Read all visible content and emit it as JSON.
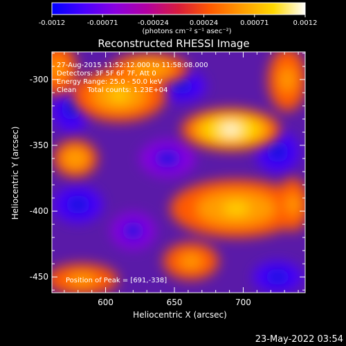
{
  "colorbar": {
    "ticks": [
      "-0.0012",
      "-0.00071",
      "-0.00024",
      "0.00024",
      "0.00071",
      "0.0012"
    ],
    "unit_label": "(photons cm⁻² s⁻¹ asec⁻²)",
    "colormap": [
      "#0000ff",
      "#4800ff",
      "#8a00e0",
      "#b300a0",
      "#d81c3c",
      "#ff5a00",
      "#ff9c00",
      "#ffd800",
      "#ffffff"
    ]
  },
  "chart_data": {
    "type": "heatmap",
    "title": "Reconstructed RHESSI Image",
    "xlabel": "Heliocentric X (arcsec)",
    "ylabel": "Heliocentric Y (arcsec)",
    "x_ticks": [
      600,
      650,
      700
    ],
    "y_ticks": [
      -300,
      -350,
      -400,
      -450
    ],
    "xlim": [
      561,
      745
    ],
    "ylim": [
      -462,
      -279
    ],
    "value_range": [
      -0.0012,
      0.0012
    ],
    "bright_regions": [
      {
        "x": 691,
        "y": -338,
        "rx": 36,
        "ry": 16,
        "value": 0.0012
      },
      {
        "x": 695,
        "y": -398,
        "rx": 48,
        "ry": 22,
        "value": 0.0009
      },
      {
        "x": 610,
        "y": -312,
        "rx": 34,
        "ry": 20,
        "value": 0.00075
      },
      {
        "x": 632,
        "y": -292,
        "rx": 28,
        "ry": 12,
        "value": 0.0007
      },
      {
        "x": 565,
        "y": -292,
        "rx": 14,
        "ry": 20,
        "value": 0.0006
      },
      {
        "x": 578,
        "y": -360,
        "rx": 16,
        "ry": 14,
        "value": 0.0007
      },
      {
        "x": 583,
        "y": -452,
        "rx": 26,
        "ry": 12,
        "value": 0.00065
      },
      {
        "x": 662,
        "y": -438,
        "rx": 20,
        "ry": 14,
        "value": 0.00055
      },
      {
        "x": 732,
        "y": -300,
        "rx": 14,
        "ry": 24,
        "value": 0.0006
      },
      {
        "x": 736,
        "y": -395,
        "rx": 12,
        "ry": 20,
        "value": 0.00055
      }
    ],
    "dark_regions": [
      {
        "x": 575,
        "y": -322,
        "rx": 14,
        "ry": 18,
        "value": -0.0009
      },
      {
        "x": 655,
        "y": -305,
        "rx": 18,
        "ry": 12,
        "value": -0.0008
      },
      {
        "x": 645,
        "y": -360,
        "rx": 20,
        "ry": 14,
        "value": -0.0007
      },
      {
        "x": 725,
        "y": -355,
        "rx": 16,
        "ry": 16,
        "value": -0.0008
      },
      {
        "x": 580,
        "y": -395,
        "rx": 18,
        "ry": 14,
        "value": -0.0009
      },
      {
        "x": 620,
        "y": -415,
        "rx": 16,
        "ry": 14,
        "value": -0.0007
      },
      {
        "x": 725,
        "y": -450,
        "rx": 18,
        "ry": 12,
        "value": -0.0008
      }
    ],
    "annotations": [
      "27-Aug-2015 11:52:12.000 to 11:58:08.000",
      "Detectors: 3F 5F 6F 7F, Att 0",
      "Energy Range: 25.0 - 50.0 keV",
      "Clean     Total counts: 1.23E+04"
    ],
    "peak_label": "Position of Peak = [691,-338]"
  },
  "footer": {
    "date": "23-May-2022 03:54"
  }
}
